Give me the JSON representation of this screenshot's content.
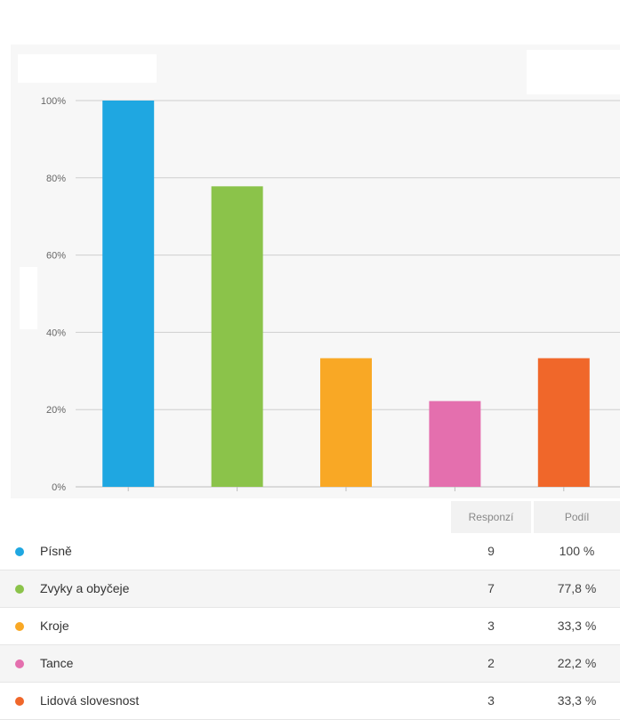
{
  "chart_data": {
    "type": "bar",
    "categories": [
      "Písně",
      "Zvyky a obyčeje",
      "Kroje",
      "Tance",
      "Lidová slovesnost"
    ],
    "values": [
      100,
      77.8,
      33.3,
      22.2,
      33.3
    ],
    "colors": [
      "#1fa7e1",
      "#8bc34a",
      "#f9a825",
      "#e46fae",
      "#f0672a"
    ],
    "ylim": [
      0,
      100
    ],
    "yticks": [
      0,
      20,
      40,
      60,
      80,
      100
    ],
    "ytick_labels": [
      "0%",
      "20%",
      "40%",
      "60%",
      "80%",
      "100%"
    ],
    "grid": true,
    "legend": "table-below"
  },
  "table": {
    "headers": {
      "responses": "Responzí",
      "share": "Podíl"
    },
    "rows": [
      {
        "label": "Písně",
        "responses": "9",
        "share": "100 %",
        "color": "#1fa7e1"
      },
      {
        "label": "Zvyky a obyčeje",
        "responses": "7",
        "share": "77,8 %",
        "color": "#8bc34a"
      },
      {
        "label": "Kroje",
        "responses": "3",
        "share": "33,3 %",
        "color": "#f9a825"
      },
      {
        "label": "Tance",
        "responses": "2",
        "share": "22,2 %",
        "color": "#e46fae"
      },
      {
        "label": "Lidová slovesnost",
        "responses": "3",
        "share": "33,3 %",
        "color": "#f0672a"
      }
    ]
  }
}
